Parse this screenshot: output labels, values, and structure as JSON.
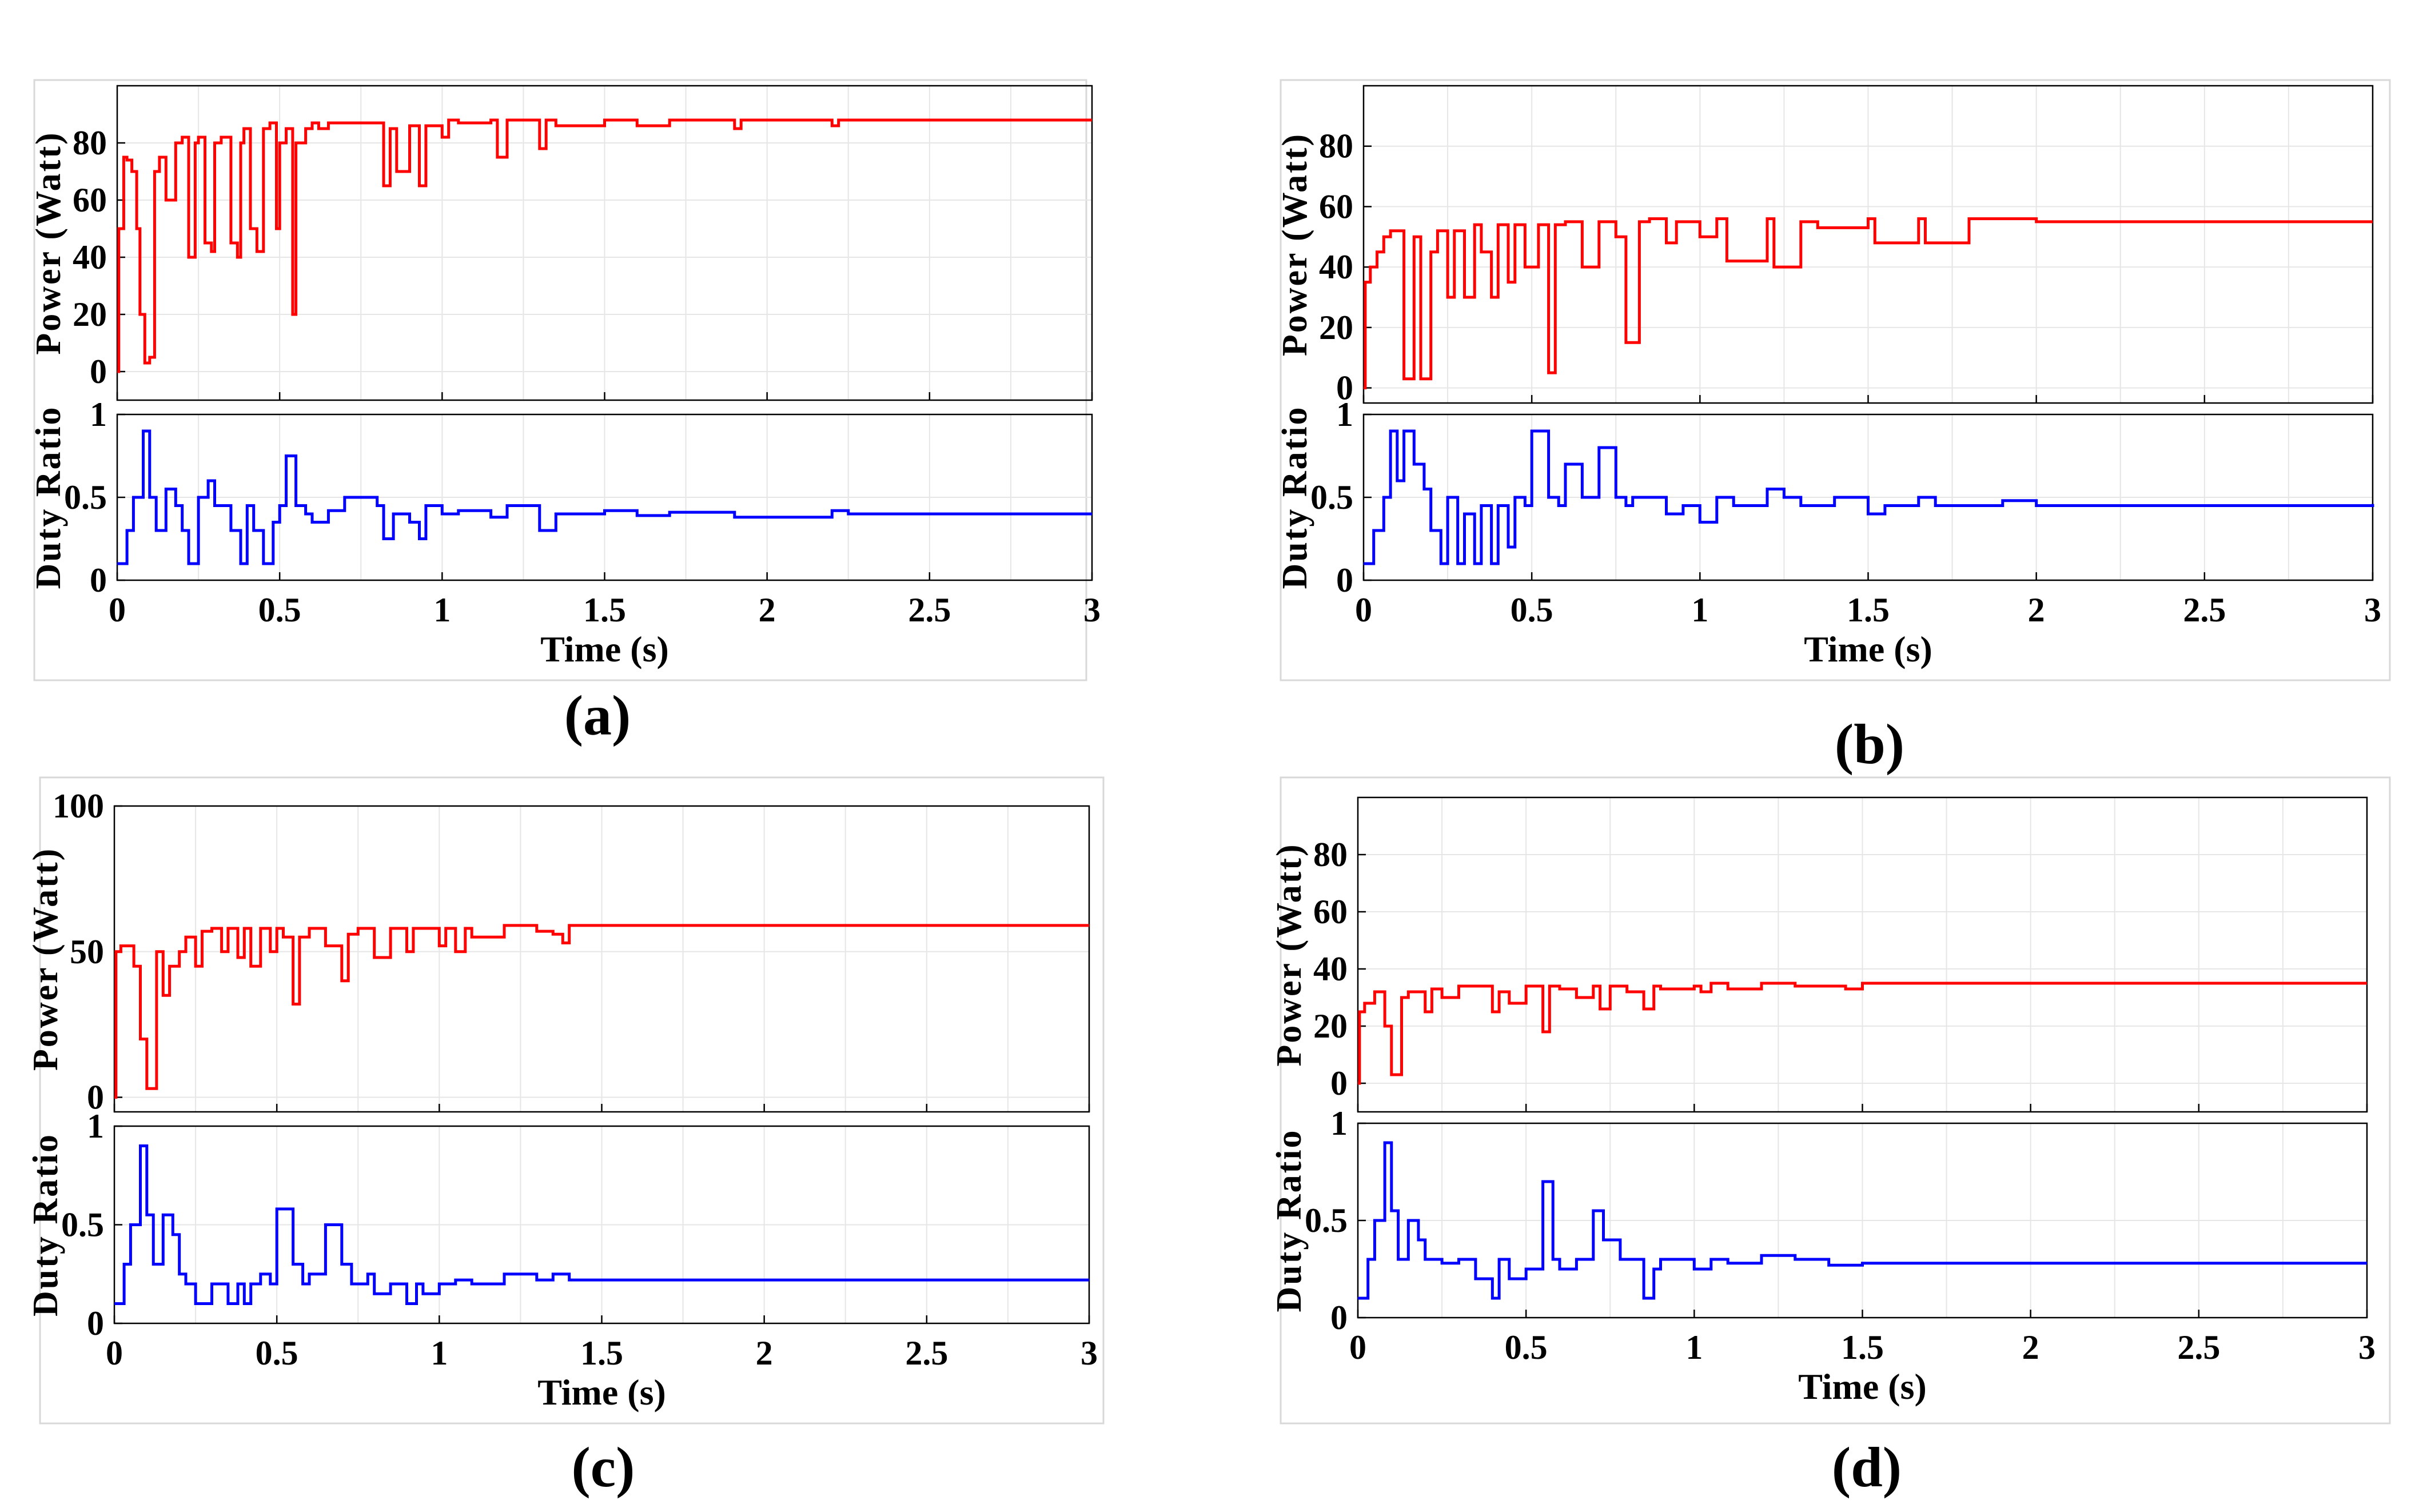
{
  "figure": {
    "x_tick_labels": [
      "0",
      "0.5",
      "1",
      "1.5",
      "2",
      "2.5",
      "3"
    ],
    "duty_tick_labels": [
      "0",
      "0.5",
      "1"
    ],
    "colors": {
      "power": "#ff0000",
      "duty": "#0000ff",
      "grid": "#e6e6e6",
      "panel_border": "#d8d8d8"
    }
  },
  "chart_data": [
    {
      "type": "line",
      "caption": "(a)",
      "xlabel": "Time (s)",
      "power": {
        "ylabel": "Power (Watt)",
        "ylim": [
          -10,
          100
        ],
        "yticks": [
          0,
          20,
          40,
          60,
          80
        ],
        "ytick_labels": [
          "0",
          "20",
          "40",
          "60",
          "80"
        ],
        "x": [
          0,
          0.005,
          0.02,
          0.03,
          0.045,
          0.06,
          0.07,
          0.085,
          0.1,
          0.115,
          0.13,
          0.15,
          0.18,
          0.2,
          0.22,
          0.24,
          0.25,
          0.27,
          0.29,
          0.3,
          0.32,
          0.35,
          0.37,
          0.38,
          0.39,
          0.41,
          0.43,
          0.45,
          0.47,
          0.49,
          0.5,
          0.52,
          0.54,
          0.55,
          0.58,
          0.6,
          0.62,
          0.65,
          0.8,
          0.82,
          0.84,
          0.86,
          0.9,
          0.93,
          0.95,
          1,
          1.02,
          1.05,
          1.15,
          1.17,
          1.2,
          1.3,
          1.32,
          1.35,
          1.5,
          1.6,
          1.7,
          1.9,
          1.92,
          2.2,
          2.22,
          3
        ],
        "values": [
          0,
          50,
          75,
          74,
          70,
          50,
          20,
          3,
          5,
          70,
          75,
          60,
          80,
          82,
          40,
          80,
          82,
          45,
          42,
          80,
          82,
          45,
          40,
          80,
          85,
          50,
          42,
          85,
          87,
          50,
          80,
          85,
          20,
          80,
          85,
          87,
          85,
          87,
          87,
          65,
          85,
          70,
          86,
          65,
          86,
          82,
          88,
          87,
          88,
          75,
          88,
          78,
          88,
          86,
          88,
          86,
          88,
          85,
          88,
          86,
          88,
          88
        ]
      },
      "duty": {
        "ylabel": "Duty Ratio",
        "ylim": [
          0,
          1
        ],
        "x": [
          0,
          0.03,
          0.05,
          0.08,
          0.1,
          0.12,
          0.15,
          0.18,
          0.2,
          0.22,
          0.25,
          0.28,
          0.3,
          0.35,
          0.38,
          0.4,
          0.42,
          0.45,
          0.48,
          0.5,
          0.52,
          0.55,
          0.58,
          0.6,
          0.65,
          0.7,
          0.8,
          0.82,
          0.85,
          0.9,
          0.93,
          0.95,
          1,
          1.05,
          1.15,
          1.2,
          1.3,
          1.35,
          1.5,
          1.6,
          1.7,
          1.9,
          2.2,
          2.25,
          3
        ],
        "values": [
          0.1,
          0.3,
          0.5,
          0.9,
          0.5,
          0.3,
          0.55,
          0.45,
          0.3,
          0.1,
          0.5,
          0.6,
          0.45,
          0.3,
          0.1,
          0.45,
          0.3,
          0.1,
          0.35,
          0.45,
          0.75,
          0.45,
          0.4,
          0.35,
          0.42,
          0.5,
          0.45,
          0.25,
          0.4,
          0.35,
          0.25,
          0.45,
          0.4,
          0.42,
          0.38,
          0.45,
          0.3,
          0.4,
          0.42,
          0.39,
          0.41,
          0.38,
          0.42,
          0.4,
          0.4
        ]
      }
    },
    {
      "type": "line",
      "caption": "(b)",
      "xlabel": "Time (s)",
      "power": {
        "ylabel": "Power (Watt)",
        "ylim": [
          -5,
          100
        ],
        "yticks": [
          0,
          20,
          40,
          60,
          80
        ],
        "ytick_labels": [
          "0",
          "20",
          "40",
          "60",
          "80"
        ],
        "x": [
          0,
          0.005,
          0.02,
          0.04,
          0.06,
          0.08,
          0.12,
          0.15,
          0.17,
          0.2,
          0.22,
          0.25,
          0.27,
          0.3,
          0.33,
          0.35,
          0.38,
          0.4,
          0.43,
          0.45,
          0.48,
          0.52,
          0.55,
          0.57,
          0.6,
          0.65,
          0.7,
          0.75,
          0.78,
          0.82,
          0.85,
          0.9,
          0.93,
          1,
          1.05,
          1.08,
          1.2,
          1.22,
          1.3,
          1.35,
          1.5,
          1.52,
          1.65,
          1.67,
          1.8,
          2,
          3
        ],
        "values": [
          0,
          35,
          40,
          45,
          50,
          52,
          3,
          50,
          3,
          45,
          52,
          30,
          52,
          30,
          54,
          45,
          30,
          54,
          35,
          54,
          40,
          54,
          5,
          54,
          55,
          40,
          55,
          50,
          15,
          55,
          56,
          48,
          55,
          50,
          56,
          42,
          56,
          40,
          55,
          53,
          56,
          48,
          56,
          48,
          56,
          55,
          55
        ]
      },
      "duty": {
        "ylabel": "Duty Ratio",
        "ylim": [
          0,
          1
        ],
        "x": [
          0,
          0.03,
          0.06,
          0.08,
          0.1,
          0.12,
          0.15,
          0.18,
          0.2,
          0.23,
          0.25,
          0.28,
          0.3,
          0.33,
          0.35,
          0.38,
          0.4,
          0.43,
          0.45,
          0.48,
          0.5,
          0.55,
          0.58,
          0.6,
          0.65,
          0.7,
          0.75,
          0.78,
          0.8,
          0.9,
          0.95,
          1,
          1.05,
          1.1,
          1.2,
          1.25,
          1.3,
          1.4,
          1.5,
          1.55,
          1.65,
          1.7,
          1.9,
          2,
          3
        ],
        "values": [
          0.1,
          0.3,
          0.5,
          0.9,
          0.6,
          0.9,
          0.7,
          0.55,
          0.3,
          0.1,
          0.5,
          0.1,
          0.4,
          0.1,
          0.45,
          0.1,
          0.45,
          0.2,
          0.5,
          0.45,
          0.9,
          0.5,
          0.45,
          0.7,
          0.5,
          0.8,
          0.5,
          0.45,
          0.5,
          0.4,
          0.45,
          0.35,
          0.5,
          0.45,
          0.55,
          0.5,
          0.45,
          0.5,
          0.4,
          0.45,
          0.5,
          0.45,
          0.48,
          0.45,
          0.46
        ]
      }
    },
    {
      "type": "line",
      "caption": "(c)",
      "xlabel": "Time (s)",
      "power": {
        "ylabel": "Power (Watt)",
        "ylim": [
          -5,
          100
        ],
        "yticks": [
          0,
          50,
          100
        ],
        "ytick_labels": [
          "0",
          "50",
          "100"
        ],
        "x": [
          0,
          0.005,
          0.02,
          0.06,
          0.08,
          0.1,
          0.11,
          0.13,
          0.15,
          0.17,
          0.2,
          0.22,
          0.25,
          0.27,
          0.3,
          0.33,
          0.35,
          0.38,
          0.4,
          0.42,
          0.45,
          0.48,
          0.5,
          0.52,
          0.55,
          0.57,
          0.6,
          0.65,
          0.7,
          0.72,
          0.75,
          0.8,
          0.85,
          0.9,
          0.92,
          1,
          1.02,
          1.05,
          1.08,
          1.1,
          1.2,
          1.3,
          1.35,
          1.38,
          1.4,
          2,
          3
        ],
        "values": [
          0,
          50,
          52,
          45,
          20,
          3,
          3,
          50,
          35,
          45,
          50,
          55,
          45,
          57,
          58,
          50,
          58,
          48,
          58,
          45,
          58,
          50,
          58,
          55,
          32,
          55,
          58,
          52,
          40,
          56,
          58,
          48,
          58,
          50,
          58,
          52,
          58,
          50,
          58,
          55,
          59,
          57,
          56,
          53,
          59,
          59,
          59
        ]
      },
      "duty": {
        "ylabel": "Duty Ratio",
        "ylim": [
          0,
          1
        ],
        "x": [
          0,
          0.03,
          0.05,
          0.08,
          0.1,
          0.12,
          0.15,
          0.18,
          0.2,
          0.22,
          0.25,
          0.3,
          0.35,
          0.38,
          0.4,
          0.42,
          0.45,
          0.48,
          0.5,
          0.55,
          0.58,
          0.6,
          0.65,
          0.7,
          0.73,
          0.78,
          0.8,
          0.85,
          0.9,
          0.93,
          0.95,
          1,
          1.05,
          1.1,
          1.2,
          1.3,
          1.35,
          1.4,
          2,
          3
        ],
        "values": [
          0.1,
          0.3,
          0.5,
          0.9,
          0.55,
          0.3,
          0.55,
          0.45,
          0.25,
          0.2,
          0.1,
          0.2,
          0.1,
          0.2,
          0.1,
          0.2,
          0.25,
          0.2,
          0.58,
          0.3,
          0.2,
          0.25,
          0.5,
          0.3,
          0.2,
          0.25,
          0.15,
          0.2,
          0.1,
          0.2,
          0.15,
          0.2,
          0.22,
          0.2,
          0.25,
          0.22,
          0.25,
          0.22,
          0.22,
          0.22
        ]
      }
    },
    {
      "type": "line",
      "caption": "(d)",
      "xlabel": "Time (s)",
      "power": {
        "ylabel": "Power (Watt)",
        "ylim": [
          -10,
          100
        ],
        "yticks": [
          0,
          20,
          40,
          60,
          80
        ],
        "ytick_labels": [
          "0",
          "20",
          "40",
          "60",
          "80"
        ],
        "x": [
          0,
          0.005,
          0.02,
          0.05,
          0.08,
          0.1,
          0.11,
          0.13,
          0.15,
          0.2,
          0.22,
          0.25,
          0.3,
          0.4,
          0.42,
          0.45,
          0.5,
          0.55,
          0.57,
          0.6,
          0.65,
          0.7,
          0.72,
          0.75,
          0.8,
          0.85,
          0.88,
          0.9,
          1,
          1.02,
          1.05,
          1.1,
          1.2,
          1.3,
          1.45,
          1.5,
          2,
          3
        ],
        "values": [
          0,
          25,
          28,
          32,
          20,
          3,
          3,
          30,
          32,
          25,
          33,
          30,
          34,
          25,
          32,
          28,
          34,
          18,
          34,
          33,
          30,
          34,
          26,
          34,
          32,
          26,
          34,
          33,
          34,
          32,
          35,
          33,
          35,
          34,
          33,
          35,
          35,
          35
        ]
      },
      "duty": {
        "ylabel": "Duty Ratio",
        "ylim": [
          0,
          1
        ],
        "x": [
          0,
          0.03,
          0.05,
          0.08,
          0.1,
          0.12,
          0.15,
          0.18,
          0.2,
          0.25,
          0.3,
          0.35,
          0.4,
          0.42,
          0.45,
          0.5,
          0.55,
          0.58,
          0.6,
          0.65,
          0.7,
          0.73,
          0.78,
          0.85,
          0.88,
          0.9,
          1,
          1.05,
          1.1,
          1.2,
          1.3,
          1.4,
          1.5,
          2,
          3
        ],
        "values": [
          0.1,
          0.3,
          0.5,
          0.9,
          0.55,
          0.3,
          0.5,
          0.4,
          0.3,
          0.28,
          0.3,
          0.2,
          0.1,
          0.3,
          0.2,
          0.25,
          0.7,
          0.3,
          0.25,
          0.3,
          0.55,
          0.4,
          0.3,
          0.1,
          0.25,
          0.3,
          0.25,
          0.3,
          0.28,
          0.32,
          0.3,
          0.27,
          0.28,
          0.28,
          0.28
        ]
      }
    }
  ]
}
